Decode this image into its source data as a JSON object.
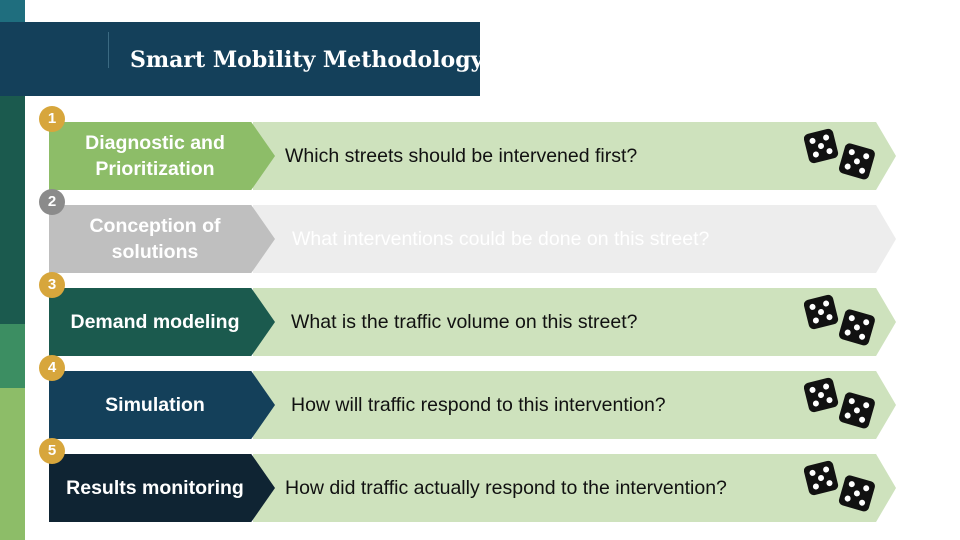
{
  "title": "Smart Mobility Methodology",
  "colors": {
    "title_bg": "#14405a",
    "badge_gold": "#d7a63c",
    "badge_gray": "#8b8b8b",
    "step_green": "#8dbd68",
    "step_gray": "#bfbfbf",
    "step_teal": "#1b5a4e",
    "step_navy": "#14405a",
    "step_dark": "#0f2433",
    "arrow_green": "#cee2bd",
    "arrow_gray": "#ededed"
  },
  "steps": [
    {
      "number": "1",
      "label": "Diagnostic and\nPrioritization",
      "question": "Which streets should be intervened first?",
      "step_color": "#8dbd68",
      "badge_color": "#d7a63c",
      "arrow_color": "#cee2bd",
      "question_color": "#111111",
      "dice_icon": "dice-icon",
      "show_dice": true
    },
    {
      "number": "2",
      "label": "Conception of\nsolutions",
      "question": "What interventions could be done on this street?",
      "step_color": "#bfbfbf",
      "badge_color": "#8b8b8b",
      "arrow_color": "#ededed",
      "question_color": "#ffffff",
      "show_dice": false
    },
    {
      "number": "3",
      "label": "Demand modeling",
      "question": "What is the traffic volume on this street?",
      "step_color": "#1b5a4e",
      "badge_color": "#d7a63c",
      "arrow_color": "#cee2bd",
      "question_color": "#111111",
      "dice_icon": "dice-icon",
      "show_dice": true
    },
    {
      "number": "4",
      "label": "Simulation",
      "question": "How will traffic respond to this intervention?",
      "step_color": "#14405a",
      "badge_color": "#d7a63c",
      "arrow_color": "#cee2bd",
      "question_color": "#111111",
      "dice_icon": "dice-icon",
      "show_dice": true
    },
    {
      "number": "5",
      "label": "Results monitoring",
      "question": "How did traffic actually respond to the intervention?",
      "step_color": "#0f2433",
      "badge_color": "#d7a63c",
      "arrow_color": "#cee2bd",
      "question_color": "#111111",
      "dice_icon": "dice-icon",
      "show_dice": true
    }
  ]
}
